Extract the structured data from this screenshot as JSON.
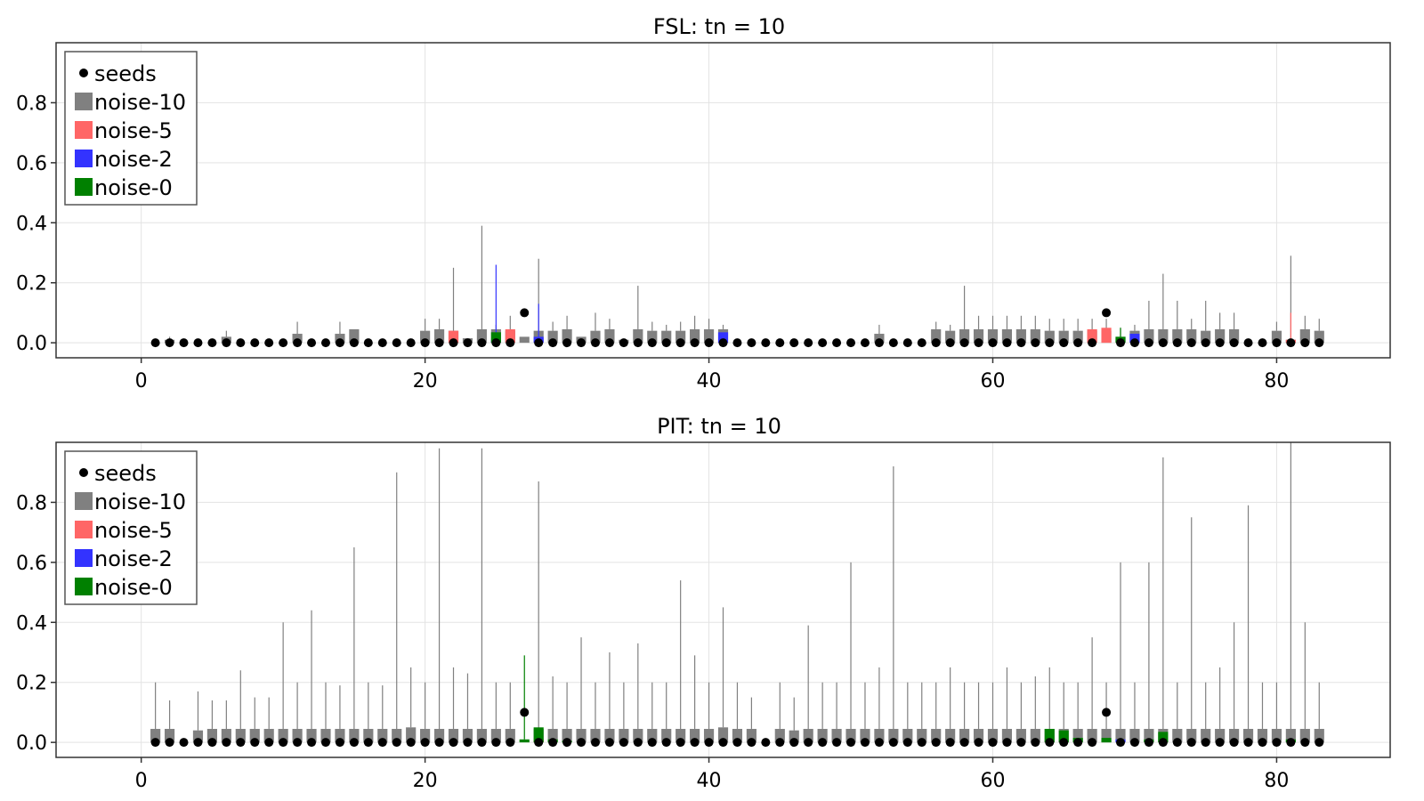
{
  "chart_data": [
    {
      "type": "bar",
      "title": "FSL: tn = 10",
      "xlabel": "",
      "ylabel": "",
      "xlim": [
        -6,
        88
      ],
      "ylim": [
        -0.05,
        1.0
      ],
      "xticks": [
        "0",
        "20",
        "40",
        "60",
        "80"
      ],
      "xtick_values": [
        0,
        20,
        40,
        60,
        80
      ],
      "yticks": [
        "0.0",
        "0.2",
        "0.4",
        "0.6",
        "0.8"
      ],
      "ytick_values": [
        0,
        0.2,
        0.4,
        0.6,
        0.8
      ],
      "grid": true,
      "legend_position": "top-left",
      "legend": [
        {
          "label": "seeds",
          "kind": "dot",
          "color": "#000000"
        },
        {
          "label": "noise-10",
          "kind": "box",
          "color": "#808080"
        },
        {
          "label": "noise-5",
          "kind": "box",
          "color": "#ff6666"
        },
        {
          "label": "noise-2",
          "kind": "box",
          "color": "#3333ff"
        },
        {
          "label": "noise-0",
          "kind": "box",
          "color": "#008000"
        }
      ],
      "seeds": {
        "x": [
          1,
          2,
          3,
          4,
          5,
          6,
          7,
          8,
          9,
          10,
          11,
          12,
          13,
          14,
          15,
          16,
          17,
          18,
          19,
          20,
          21,
          22,
          23,
          24,
          25,
          26,
          27,
          28,
          29,
          30,
          31,
          32,
          33,
          34,
          35,
          36,
          37,
          38,
          39,
          40,
          41,
          42,
          43,
          44,
          45,
          46,
          47,
          48,
          49,
          50,
          51,
          52,
          53,
          54,
          55,
          56,
          57,
          58,
          59,
          60,
          61,
          62,
          63,
          64,
          65,
          66,
          67,
          68,
          69,
          70,
          71,
          72,
          73,
          74,
          75,
          76,
          77,
          78,
          79,
          80,
          81,
          82,
          83
        ],
        "y": [
          0,
          0,
          0,
          0,
          0,
          0,
          0,
          0,
          0,
          0,
          0,
          0,
          0,
          0,
          0,
          0,
          0,
          0,
          0,
          0,
          0,
          0,
          0,
          0,
          0,
          0,
          0.1,
          0,
          0,
          0,
          0,
          0,
          0,
          0,
          0,
          0,
          0,
          0,
          0,
          0,
          0,
          0,
          0,
          0,
          0,
          0,
          0,
          0,
          0,
          0,
          0,
          0,
          0,
          0,
          0,
          0,
          0,
          0,
          0,
          0,
          0,
          0,
          0,
          0,
          0,
          0,
          0,
          0.1,
          0,
          0,
          0,
          0,
          0,
          0,
          0,
          0,
          0,
          0,
          0,
          0,
          0,
          0,
          0
        ]
      },
      "series": [
        {
          "name": "noise-10",
          "color": "#808080",
          "x": [
            2,
            6,
            11,
            14,
            15,
            20,
            21,
            22,
            23,
            24,
            25,
            26,
            27,
            28,
            29,
            30,
            31,
            32,
            33,
            34,
            35,
            36,
            37,
            38,
            39,
            40,
            41,
            52,
            56,
            57,
            58,
            59,
            60,
            61,
            62,
            63,
            64,
            65,
            66,
            67,
            68,
            69,
            70,
            71,
            72,
            73,
            74,
            75,
            76,
            77,
            80,
            81,
            82,
            83
          ],
          "q3": [
            0.01,
            0.02,
            0.03,
            0.03,
            0.045,
            0.04,
            0.045,
            0.04,
            0.015,
            0.045,
            0.045,
            0.04,
            0.02,
            0.04,
            0.04,
            0.045,
            0.02,
            0.04,
            0.045,
            0.01,
            0.045,
            0.04,
            0.04,
            0.04,
            0.045,
            0.045,
            0.045,
            0.03,
            0.045,
            0.04,
            0.045,
            0.045,
            0.045,
            0.045,
            0.045,
            0.045,
            0.04,
            0.04,
            0.04,
            0.04,
            0.04,
            0.02,
            0.04,
            0.045,
            0.045,
            0.045,
            0.045,
            0.04,
            0.045,
            0.045,
            0.04,
            0.01,
            0.045,
            0.04
          ],
          "max": [
            0.02,
            0.04,
            0.07,
            0.07,
            0.045,
            0.08,
            0.08,
            0.25,
            0.015,
            0.39,
            0.06,
            0.09,
            0.02,
            0.28,
            0.07,
            0.09,
            0.02,
            0.1,
            0.08,
            0.01,
            0.19,
            0.07,
            0.06,
            0.07,
            0.09,
            0.08,
            0.06,
            0.06,
            0.07,
            0.06,
            0.19,
            0.09,
            0.09,
            0.09,
            0.09,
            0.09,
            0.08,
            0.08,
            0.08,
            0.08,
            0.08,
            0.05,
            0.06,
            0.14,
            0.23,
            0.14,
            0.08,
            0.14,
            0.1,
            0.1,
            0.07,
            0.29,
            0.09,
            0.08
          ]
        },
        {
          "name": "noise-5",
          "color": "#ff6666",
          "x": [
            22,
            26,
            67,
            68,
            81
          ],
          "q3": [
            0.04,
            0.045,
            0.045,
            0.05,
            0.01
          ],
          "max": [
            0.04,
            0.045,
            0.045,
            0.05,
            0.1
          ]
        },
        {
          "name": "noise-2",
          "color": "#3333ff",
          "x": [
            25,
            28,
            41,
            70
          ],
          "q3": [
            0.01,
            0.02,
            0.035,
            0.03
          ],
          "max": [
            0.26,
            0.13,
            0.035,
            0.03
          ]
        },
        {
          "name": "noise-0",
          "color": "#008000",
          "x": [
            25,
            69
          ],
          "q3": [
            0.035,
            0.02
          ],
          "max": [
            0.035,
            0.05
          ]
        }
      ]
    },
    {
      "type": "bar",
      "title": "PIT: tn = 10",
      "xlabel": "",
      "ylabel": "",
      "xlim": [
        -6,
        88
      ],
      "ylim": [
        -0.05,
        1.0
      ],
      "xticks": [
        "0",
        "20",
        "40",
        "60",
        "80"
      ],
      "xtick_values": [
        0,
        20,
        40,
        60,
        80
      ],
      "yticks": [
        "0.0",
        "0.2",
        "0.4",
        "0.6",
        "0.8"
      ],
      "ytick_values": [
        0,
        0.2,
        0.4,
        0.6,
        0.8
      ],
      "grid": true,
      "legend_position": "top-left",
      "legend": [
        {
          "label": "seeds",
          "kind": "dot",
          "color": "#000000"
        },
        {
          "label": "noise-10",
          "kind": "box",
          "color": "#808080"
        },
        {
          "label": "noise-5",
          "kind": "box",
          "color": "#ff6666"
        },
        {
          "label": "noise-2",
          "kind": "box",
          "color": "#3333ff"
        },
        {
          "label": "noise-0",
          "kind": "box",
          "color": "#008000"
        }
      ],
      "seeds": {
        "x": [
          1,
          2,
          3,
          4,
          5,
          6,
          7,
          8,
          9,
          10,
          11,
          12,
          13,
          14,
          15,
          16,
          17,
          18,
          19,
          20,
          21,
          22,
          23,
          24,
          25,
          26,
          27,
          28,
          29,
          30,
          31,
          32,
          33,
          34,
          35,
          36,
          37,
          38,
          39,
          40,
          41,
          42,
          43,
          44,
          45,
          46,
          47,
          48,
          49,
          50,
          51,
          52,
          53,
          54,
          55,
          56,
          57,
          58,
          59,
          60,
          61,
          62,
          63,
          64,
          65,
          66,
          67,
          68,
          69,
          70,
          71,
          72,
          73,
          74,
          75,
          76,
          77,
          78,
          79,
          80,
          81,
          82,
          83
        ],
        "y": [
          0,
          0,
          0,
          0,
          0,
          0,
          0,
          0,
          0,
          0,
          0,
          0,
          0,
          0,
          0,
          0,
          0,
          0,
          0,
          0,
          0,
          0,
          0,
          0,
          0,
          0,
          0.1,
          0,
          0,
          0,
          0,
          0,
          0,
          0,
          0,
          0,
          0,
          0,
          0,
          0,
          0,
          0,
          0,
          0,
          0,
          0,
          0,
          0,
          0,
          0,
          0,
          0,
          0,
          0,
          0,
          0,
          0,
          0,
          0,
          0,
          0,
          0,
          0,
          0,
          0,
          0,
          0,
          0.1,
          0,
          0,
          0,
          0,
          0,
          0,
          0,
          0,
          0,
          0,
          0,
          0,
          0,
          0,
          0
        ]
      },
      "series": [
        {
          "name": "noise-10",
          "color": "#808080",
          "x": [
            1,
            2,
            4,
            5,
            6,
            7,
            8,
            9,
            10,
            11,
            12,
            13,
            14,
            15,
            16,
            17,
            18,
            19,
            20,
            21,
            22,
            23,
            24,
            25,
            26,
            28,
            29,
            30,
            31,
            32,
            33,
            34,
            35,
            36,
            37,
            38,
            39,
            40,
            41,
            42,
            43,
            45,
            46,
            47,
            48,
            49,
            50,
            51,
            52,
            53,
            54,
            55,
            56,
            57,
            58,
            59,
            60,
            61,
            62,
            63,
            64,
            65,
            66,
            67,
            68,
            69,
            70,
            71,
            72,
            73,
            74,
            75,
            76,
            77,
            78,
            79,
            80,
            81,
            82,
            83
          ],
          "q3": [
            0.045,
            0.045,
            0.04,
            0.045,
            0.045,
            0.045,
            0.045,
            0.045,
            0.045,
            0.045,
            0.045,
            0.045,
            0.045,
            0.045,
            0.045,
            0.045,
            0.045,
            0.05,
            0.045,
            0.045,
            0.045,
            0.045,
            0.045,
            0.045,
            0.045,
            0.045,
            0.045,
            0.045,
            0.045,
            0.045,
            0.045,
            0.045,
            0.045,
            0.045,
            0.045,
            0.045,
            0.045,
            0.045,
            0.05,
            0.045,
            0.045,
            0.045,
            0.04,
            0.045,
            0.045,
            0.045,
            0.045,
            0.045,
            0.045,
            0.045,
            0.045,
            0.045,
            0.045,
            0.045,
            0.045,
            0.045,
            0.045,
            0.045,
            0.045,
            0.045,
            0.045,
            0.045,
            0.045,
            0.045,
            0.045,
            0.045,
            0.045,
            0.045,
            0.045,
            0.045,
            0.045,
            0.045,
            0.045,
            0.045,
            0.045,
            0.045,
            0.045,
            0.045,
            0.045,
            0.045
          ],
          "max": [
            0.2,
            0.14,
            0.17,
            0.14,
            0.14,
            0.24,
            0.15,
            0.15,
            0.4,
            0.2,
            0.44,
            0.2,
            0.19,
            0.65,
            0.2,
            0.19,
            0.9,
            0.25,
            0.2,
            0.98,
            0.25,
            0.23,
            0.98,
            0.2,
            0.2,
            0.87,
            0.22,
            0.2,
            0.35,
            0.2,
            0.3,
            0.2,
            0.33,
            0.2,
            0.2,
            0.54,
            0.29,
            0.2,
            0.45,
            0.2,
            0.15,
            0.2,
            0.15,
            0.39,
            0.2,
            0.2,
            0.6,
            0.2,
            0.25,
            0.92,
            0.2,
            0.2,
            0.2,
            0.25,
            0.2,
            0.2,
            0.2,
            0.25,
            0.2,
            0.22,
            0.25,
            0.2,
            0.2,
            0.35,
            0.2,
            0.6,
            0.2,
            0.6,
            0.95,
            0.2,
            0.75,
            0.2,
            0.25,
            0.4,
            0.79,
            0.2,
            0.2,
            1.0,
            0.4,
            0.2
          ]
        },
        {
          "name": "noise-5",
          "color": "#ff6666",
          "x": [
            28
          ],
          "q3": [
            0.01
          ],
          "max": [
            0.01
          ]
        },
        {
          "name": "noise-2",
          "color": "#3333ff",
          "x": [
            69
          ],
          "q3": [
            0.01
          ],
          "max": [
            0.01
          ]
        },
        {
          "name": "noise-0",
          "color": "#008000",
          "x": [
            27,
            28,
            29,
            30,
            64,
            65,
            66,
            68,
            71,
            72,
            81
          ],
          "q3": [
            0.01,
            0.05,
            0.01,
            0.005,
            0.045,
            0.04,
            0.015,
            0.015,
            0.01,
            0.035,
            0.01
          ],
          "max": [
            0.29,
            0.05,
            0.01,
            0.005,
            0.045,
            0.04,
            0.015,
            0.015,
            0.01,
            0.035,
            0.01
          ]
        }
      ]
    }
  ]
}
